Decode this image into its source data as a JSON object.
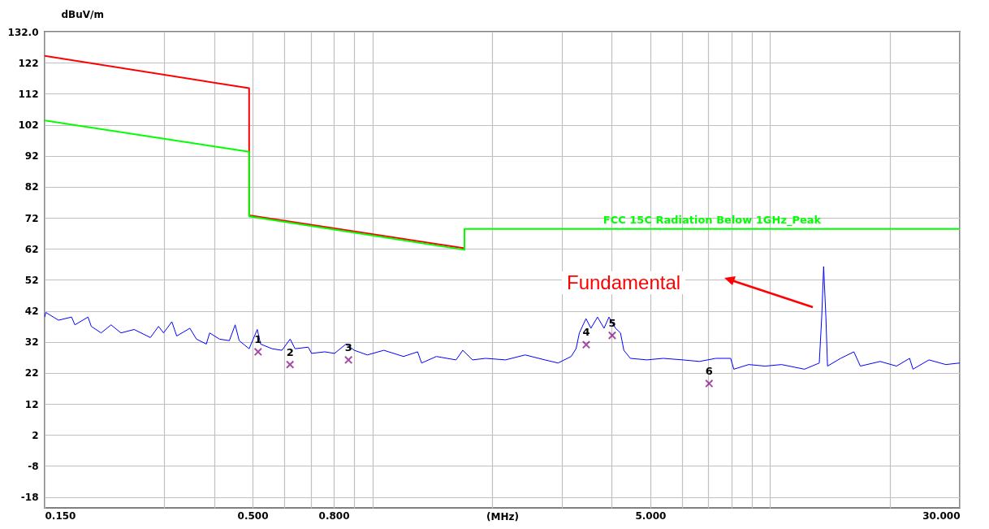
{
  "chart_data": {
    "type": "line",
    "xlabel": "(MHz)",
    "ylabel": "dBuV/m",
    "log": "x",
    "grid": true,
    "xlim": [
      0.15,
      30
    ],
    "ylim": [
      -21.5,
      132
    ],
    "xticks": [
      {
        "value": 0.15,
        "label": "0.150"
      },
      {
        "value": 0.3,
        "label": null
      },
      {
        "value": 0.4,
        "label": null
      },
      {
        "value": 0.5,
        "label": "0.500"
      },
      {
        "value": 0.6,
        "label": null
      },
      {
        "value": 0.7,
        "label": null
      },
      {
        "value": 0.8,
        "label": "0.800"
      },
      {
        "value": 0.9,
        "label": null
      },
      {
        "value": 1,
        "label": null
      },
      {
        "value": 2,
        "label": null
      },
      {
        "value": 3,
        "label": null
      },
      {
        "value": 4,
        "label": null
      },
      {
        "value": 5,
        "label": "5.000"
      },
      {
        "value": 6,
        "label": null
      },
      {
        "value": 7,
        "label": null
      },
      {
        "value": 8,
        "label": null
      },
      {
        "value": 9,
        "label": null
      },
      {
        "value": 10,
        "label": null
      },
      {
        "value": 20,
        "label": null
      },
      {
        "value": 30,
        "label": "30.000"
      }
    ],
    "yticks": [
      -18,
      -8,
      2,
      12,
      22,
      32,
      42,
      52,
      62,
      72,
      82,
      92,
      102,
      112,
      122,
      {
        "value": 132,
        "label": "132.0"
      }
    ],
    "series": [
      {
        "type": "line",
        "color": "#ff0000",
        "x": [
          0.15,
          0.49,
          0.49,
          1.705
        ],
        "values": [
          124.2,
          113.8,
          72.8,
          62.2
        ]
      },
      {
        "type": "line",
        "name": "FCC 15C Radiation Below 1GHz_Peak",
        "color": "#00ff00",
        "x": [
          0.15,
          0.49,
          0.49,
          1.705,
          1.705,
          30
        ],
        "values": [
          103.4,
          93.3,
          72.5,
          61.7,
          68.4,
          68.4
        ]
      },
      {
        "type": "line",
        "color": "#0000ff",
        "x": [
          0.15,
          0.151,
          0.1625,
          0.1753,
          0.1787,
          0.1928,
          0.1965,
          0.208,
          0.2203,
          0.2333,
          0.2518,
          0.2767,
          0.29,
          0.2986,
          0.3133,
          0.3222,
          0.3477,
          0.3612,
          0.3825,
          0.3899,
          0.4127,
          0.437,
          0.452,
          0.4627,
          0.49,
          0.5137,
          0.5236,
          0.5598,
          0.5926,
          0.6214,
          0.6394,
          0.6901,
          0.7034,
          0.7591,
          0.8035,
          0.8589,
          0.9006,
          0.9718,
          1.069,
          1.198,
          1.3,
          1.33,
          1.449,
          1.624,
          1.688,
          1.787,
          1.928,
          2.161,
          2.423,
          2.716,
          2.931,
          3.162,
          3.253,
          3.316,
          3.446,
          3.545,
          3.683,
          3.825,
          3.936,
          4.089,
          4.207,
          4.29,
          4.455,
          4.9,
          5.388,
          6.039,
          6.642,
          7.305,
          7.962,
          8.11,
          8.84,
          9.72,
          10.69,
          12.21,
          13.3,
          13.49,
          13.64,
          13.82,
          13.95,
          15.05,
          16.25,
          16.87,
          18.92,
          20.8,
          22.44,
          22.88,
          25.1,
          27.67,
          30
        ],
        "values": [
          40.0,
          41.5,
          39.0,
          40.0,
          37.5,
          40.0,
          37.0,
          34.9,
          37.5,
          34.9,
          36.0,
          33.4,
          37.0,
          34.9,
          38.5,
          33.9,
          36.4,
          32.9,
          31.3,
          34.9,
          32.9,
          32.4,
          37.5,
          32.4,
          29.8,
          36.0,
          31.3,
          29.8,
          29.3,
          32.9,
          29.8,
          30.3,
          28.3,
          28.8,
          28.3,
          31.3,
          29.3,
          27.8,
          29.3,
          27.3,
          28.8,
          25.2,
          27.3,
          26.2,
          29.3,
          26.2,
          26.7,
          26.2,
          27.8,
          26.2,
          25.2,
          27.3,
          29.8,
          34.9,
          39.5,
          36.4,
          40.0,
          36.4,
          40.0,
          36.4,
          34.9,
          29.3,
          26.7,
          26.2,
          26.7,
          26.2,
          25.7,
          26.7,
          26.7,
          23.2,
          24.7,
          24.2,
          24.7,
          23.2,
          25.2,
          40.0,
          56.3,
          40.0,
          24.2,
          26.7,
          28.8,
          24.2,
          25.7,
          24.2,
          26.7,
          23.2,
          26.2,
          24.7,
          25.2
        ]
      },
      {
        "type": "scatter",
        "color": "#800080",
        "marker": "cross",
        "x": [
          0.516,
          0.621,
          0.871,
          3.45,
          4.01,
          7.03
        ],
        "values": [
          28.8,
          24.7,
          26.2,
          31.1,
          34.1,
          18.6
        ]
      }
    ],
    "annotations": [
      "Fundamental",
      {
        "text": "1",
        "x": 0.516,
        "y": 28.8
      },
      {
        "text": "2",
        "x": 0.621,
        "y": 24.7
      },
      {
        "text": "3",
        "x": 0.871,
        "y": 26.2
      },
      {
        "text": "4",
        "x": 3.45,
        "y": 31.1
      },
      {
        "text": "5",
        "x": 4.01,
        "y": 34.1
      },
      {
        "text": "6",
        "x": 7.03,
        "y": 18.6
      }
    ]
  }
}
